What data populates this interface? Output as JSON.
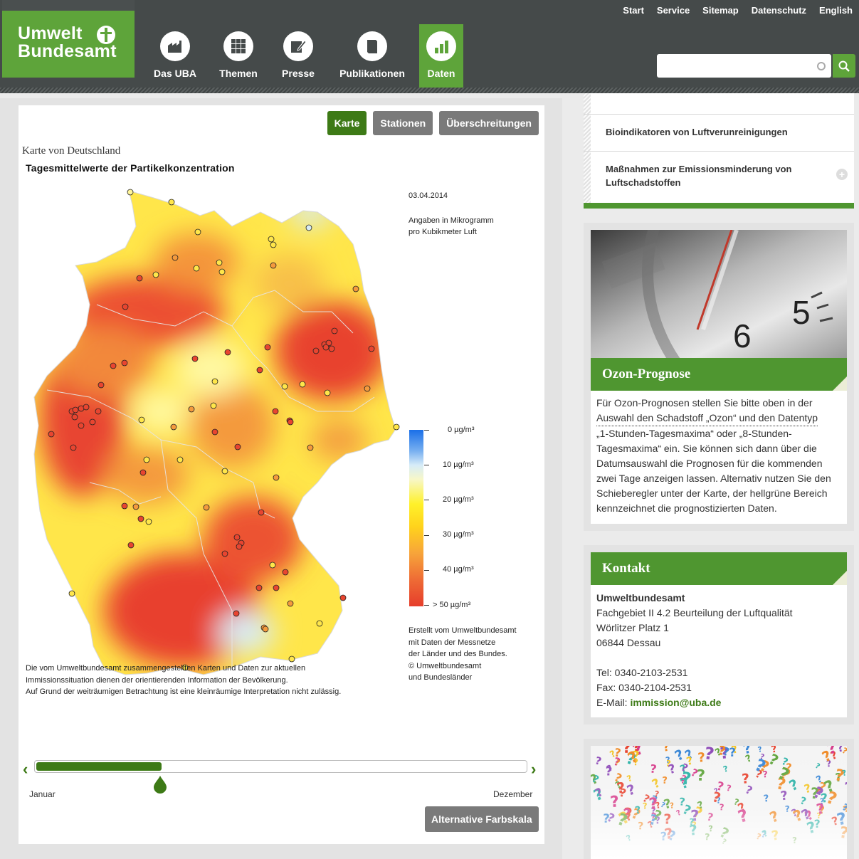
{
  "header": {
    "logo_line1": "Umwelt",
    "logo_line2": "Bundesamt",
    "topnav": [
      "Start",
      "Service",
      "Sitemap",
      "Datenschutz",
      "English"
    ],
    "mainnav": [
      {
        "label": "Das UBA",
        "icon": "factory-icon"
      },
      {
        "label": "Themen",
        "icon": "grid-icon"
      },
      {
        "label": "Presse",
        "icon": "pencil-note-icon"
      },
      {
        "label": "Publikationen",
        "icon": "book-icon"
      },
      {
        "label": "Daten",
        "icon": "bar-chart-icon",
        "active": true
      }
    ],
    "search": {
      "placeholder": "",
      "value": ""
    }
  },
  "tabs": [
    {
      "label": "Karte",
      "active": true
    },
    {
      "label": "Stationen",
      "active": false
    },
    {
      "label": "Überschreitungen",
      "active": false
    }
  ],
  "map": {
    "heading": "Karte von Deutschland",
    "title": "Tagesmittelwerte der Partikelkonzentration",
    "date": "03.04.2014",
    "unit_line1": "Angaben in Mikrogramm",
    "unit_line2": "pro Kubikmeter Luft",
    "legend": [
      "0 µg/m³",
      "10 µg/m³",
      "20 µg/m³",
      "30 µg/m³",
      "40 µg/m³",
      ">  50 µg/m³"
    ],
    "credits": [
      "Erstellt vom Umweltbundesamt",
      "mit Daten der Messnetze",
      "der Länder und des Bundes.",
      "© Umweltbundesamt",
      "und Bundesländer"
    ],
    "disclaimer": [
      "Die vom Umweltbundesamt zusammengestellten Karten und Daten zur aktuellen",
      "Immissionssituation dienen der orientierenden Information der Bevölkerung.",
      "Auf Grund der weiträumigen Betrachtung ist eine kleinräumige Interpretation nicht zulässig."
    ]
  },
  "slider": {
    "start_label": "Januar",
    "end_label": "Dezember",
    "position": 0.255
  },
  "alt_button": "Alternative Farbskala",
  "sidebar": {
    "items": [
      {
        "label": "Bioindikatoren von Luftverunreinigungen"
      },
      {
        "label_line1": "Maßnahmen zur Emissionsminderung von",
        "label_line2": "Luftschadstoffen"
      }
    ],
    "ozon": {
      "title": "Ozon-Prognose",
      "lines": [
        "Für Ozon-Prognosen stellen Sie bitte oben in der",
        "Auswahl den Schadstoff „Ozon“ und den Datentyp",
        "„1-Stunden-Tagesmaxima“ oder „8-Stunden-",
        "Tagesmaxima“ ein. Sie können sich dann über die",
        "Datumsauswahl die Prognosen für die kommenden",
        "zwei Tage anzeigen lassen. Alternativ nutzen Sie den",
        "Schieberegler unter der Karte, der hellgrüne Bereich",
        "kennzeichnet die prognostizierten Daten."
      ]
    },
    "kontakt": {
      "title": "Kontakt",
      "org": "Umweltbundesamt",
      "dept": "Fachgebiet II 4.2 Beurteilung der Luftqualität",
      "street": "Wörlitzer Platz 1",
      "city": "06844 Dessau",
      "tel": "Tel:  0340-2103-2531",
      "fax": "Fax: 0340-2104-2531",
      "email_label": "E-Mail: ",
      "email": "immission@uba.de"
    }
  }
}
